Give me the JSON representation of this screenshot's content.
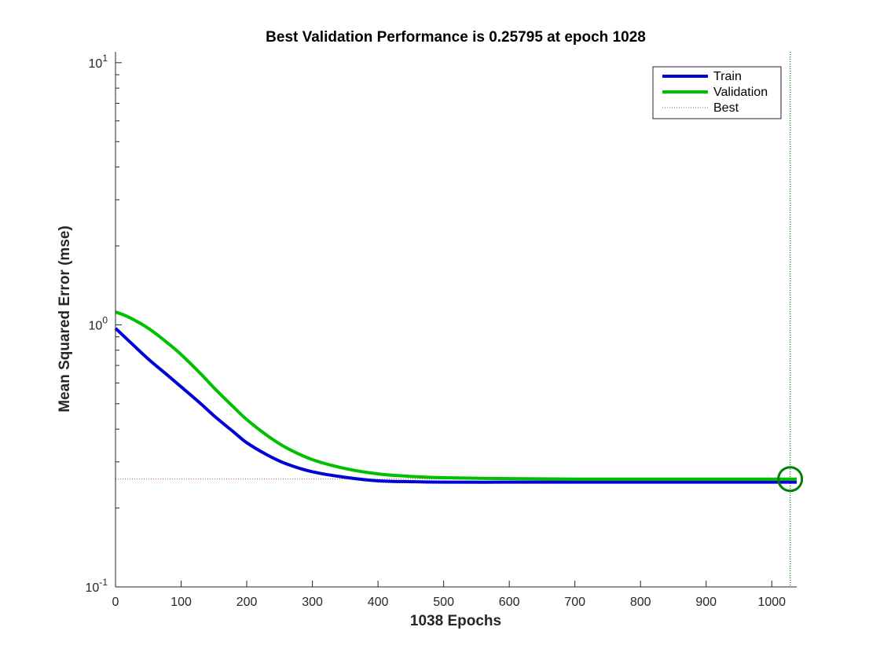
{
  "chart_data": {
    "type": "line",
    "title": "Best Validation Performance is 0.25795 at epoch 1028",
    "xlabel": "1038 Epochs",
    "ylabel": "Mean Squared Error  (mse)",
    "yscale": "log",
    "xlim": [
      0,
      1038
    ],
    "ylim": [
      0.1,
      11
    ],
    "xticks": [
      0,
      100,
      200,
      300,
      400,
      500,
      600,
      700,
      800,
      900,
      1000
    ],
    "yticks": [
      {
        "value": 0.1,
        "base": "10",
        "exp": "-1"
      },
      {
        "value": 1,
        "base": "10",
        "exp": "0"
      },
      {
        "value": 10,
        "base": "10",
        "exp": "1"
      }
    ],
    "grid": false,
    "legend_position": "top-right",
    "series": [
      {
        "name": "Train",
        "color": "#0000d8",
        "x": [
          0,
          20,
          50,
          80,
          100,
          130,
          150,
          180,
          200,
          230,
          260,
          300,
          350,
          400,
          450,
          500,
          600,
          700,
          800,
          900,
          1000,
          1038
        ],
        "y": [
          0.97,
          0.87,
          0.74,
          0.64,
          0.58,
          0.5,
          0.45,
          0.39,
          0.355,
          0.32,
          0.295,
          0.275,
          0.262,
          0.254,
          0.252,
          0.251,
          0.251,
          0.251,
          0.251,
          0.251,
          0.251,
          0.251
        ]
      },
      {
        "name": "Validation",
        "color": "#00c000",
        "x": [
          0,
          20,
          50,
          80,
          100,
          130,
          150,
          180,
          200,
          230,
          260,
          300,
          350,
          400,
          450,
          500,
          600,
          700,
          800,
          900,
          1000,
          1038
        ],
        "y": [
          1.12,
          1.07,
          0.97,
          0.85,
          0.77,
          0.65,
          0.575,
          0.485,
          0.435,
          0.38,
          0.34,
          0.306,
          0.283,
          0.27,
          0.264,
          0.261,
          0.259,
          0.258,
          0.258,
          0.258,
          0.258,
          0.258
        ]
      }
    ],
    "best": {
      "name": "Best",
      "color": "#008000",
      "epoch": 1028,
      "value": 0.25795
    }
  }
}
